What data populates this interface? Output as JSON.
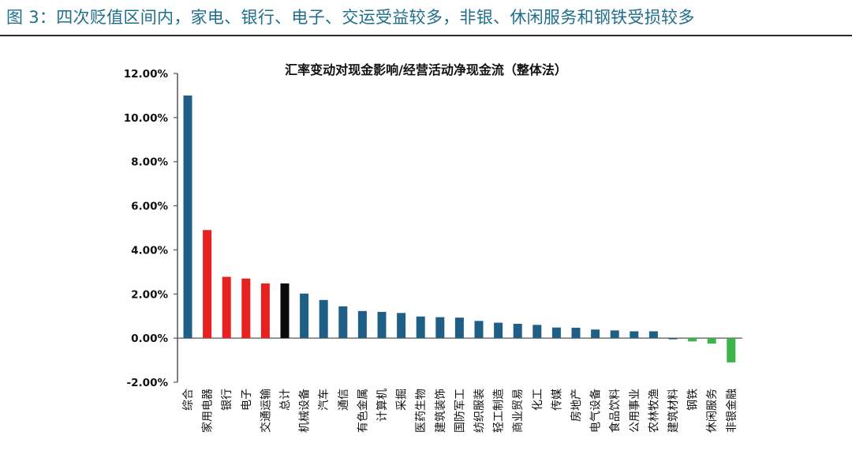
{
  "figure": {
    "caption": "图 3：四次贬值区间内，家电、银行、电子、交运受益较多，非银、休闲服务和钢铁受损较多"
  },
  "chart_data": {
    "type": "bar",
    "title": "汇率变动对现金影响/经营活动净现金流（整体法）",
    "xlabel": "",
    "ylabel": "",
    "ylim": [
      -2,
      12
    ],
    "yticks": [
      12,
      10,
      8,
      6,
      4,
      2,
      0,
      -2
    ],
    "ytick_labels": [
      "12.00%",
      "10.00%",
      "8.00%",
      "6.00%",
      "4.00%",
      "2.00%",
      "0.00%",
      "-2.00%"
    ],
    "grid": false,
    "categories": [
      "综合",
      "家用电器",
      "银行",
      "电子",
      "交通运输",
      "总计",
      "机械设备",
      "汽车",
      "通信",
      "有色金属",
      "计算机",
      "采掘",
      "医药生物",
      "建筑装饰",
      "国防军工",
      "纺织服装",
      "轻工制造",
      "商业贸易",
      "化工",
      "传媒",
      "房地产",
      "电气设备",
      "食品饮料",
      "公用事业",
      "农林牧渔",
      "建筑材料",
      "钢铁",
      "休闲服务",
      "非银金融"
    ],
    "values": [
      11.0,
      4.9,
      2.78,
      2.7,
      2.48,
      2.48,
      2.02,
      1.73,
      1.44,
      1.23,
      1.19,
      1.14,
      0.98,
      0.95,
      0.93,
      0.78,
      0.7,
      0.65,
      0.6,
      0.48,
      0.47,
      0.39,
      0.35,
      0.31,
      0.31,
      -0.05,
      -0.15,
      -0.25,
      -1.1
    ],
    "colors": {
      "positive": "#1f5f86",
      "benefit": "#e8201f",
      "total": "#0a0a0a",
      "loss": "#3cb54a",
      "axis": "#555555"
    },
    "highlight": {
      "benefit": [
        "家用电器",
        "银行",
        "电子",
        "交通运输"
      ],
      "total": [
        "总计"
      ],
      "loss": [
        "钢铁",
        "休闲服务",
        "非银金融"
      ]
    }
  }
}
